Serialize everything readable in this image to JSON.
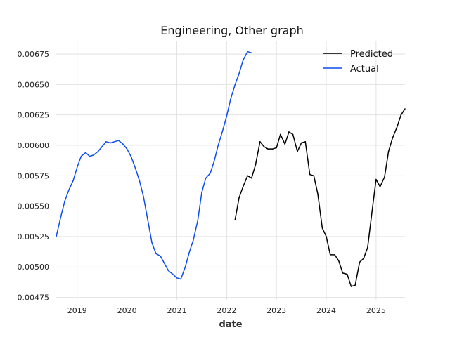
{
  "chart_data": {
    "type": "line",
    "title": "Engineering, Other graph",
    "xlabel": "date",
    "ylabel": "",
    "x_ticks": [
      "2019",
      "2020",
      "2021",
      "2022",
      "2023",
      "2024",
      "2025"
    ],
    "y_ticks": [
      "0.00475",
      "0.00500",
      "0.00525",
      "0.00550",
      "0.00575",
      "0.00600",
      "0.00625",
      "0.00650",
      "0.00675"
    ],
    "xlim": [
      2018.58,
      2025.58
    ],
    "ylim": [
      0.00473,
      0.00686
    ],
    "grid": true,
    "legend_position": "top-right",
    "series": [
      {
        "name": "Predicted",
        "color": "#000000",
        "points": [
          [
            2022.17,
            0.00539
          ],
          [
            2022.25,
            0.00557
          ],
          [
            2022.33,
            0.00566
          ],
          [
            2022.42,
            0.00575
          ],
          [
            2022.5,
            0.00573
          ],
          [
            2022.58,
            0.00584
          ],
          [
            2022.67,
            0.00603
          ],
          [
            2022.75,
            0.00599
          ],
          [
            2022.83,
            0.00597
          ],
          [
            2022.92,
            0.00597
          ],
          [
            2023.0,
            0.00598
          ],
          [
            2023.08,
            0.00609
          ],
          [
            2023.17,
            0.00601
          ],
          [
            2023.25,
            0.00611
          ],
          [
            2023.33,
            0.00609
          ],
          [
            2023.42,
            0.00595
          ],
          [
            2023.5,
            0.00602
          ],
          [
            2023.58,
            0.00603
          ],
          [
            2023.67,
            0.00576
          ],
          [
            2023.75,
            0.00575
          ],
          [
            2023.83,
            0.0056
          ],
          [
            2023.92,
            0.00532
          ],
          [
            2024.0,
            0.00525
          ],
          [
            2024.08,
            0.0051
          ],
          [
            2024.17,
            0.0051
          ],
          [
            2024.25,
            0.00505
          ],
          [
            2024.33,
            0.00495
          ],
          [
            2024.42,
            0.00494
          ],
          [
            2024.5,
            0.00484
          ],
          [
            2024.58,
            0.00485
          ],
          [
            2024.67,
            0.00504
          ],
          [
            2024.75,
            0.00507
          ],
          [
            2024.83,
            0.00516
          ],
          [
            2024.92,
            0.00546
          ],
          [
            2025.0,
            0.00572
          ],
          [
            2025.08,
            0.00566
          ],
          [
            2025.17,
            0.00574
          ],
          [
            2025.25,
            0.00595
          ],
          [
            2025.33,
            0.00606
          ],
          [
            2025.42,
            0.00615
          ],
          [
            2025.5,
            0.00625
          ],
          [
            2025.58,
            0.0063
          ]
        ]
      },
      {
        "name": "Actual",
        "color": "#0f4cf0",
        "points": [
          [
            2018.58,
            0.00525
          ],
          [
            2018.67,
            0.00541
          ],
          [
            2018.75,
            0.00554
          ],
          [
            2018.83,
            0.00563
          ],
          [
            2018.92,
            0.00571
          ],
          [
            2019.0,
            0.00582
          ],
          [
            2019.08,
            0.00591
          ],
          [
            2019.17,
            0.00594
          ],
          [
            2019.25,
            0.00591
          ],
          [
            2019.33,
            0.00592
          ],
          [
            2019.42,
            0.00595
          ],
          [
            2019.5,
            0.00599
          ],
          [
            2019.58,
            0.00603
          ],
          [
            2019.67,
            0.00602
          ],
          [
            2019.75,
            0.00603
          ],
          [
            2019.83,
            0.00604
          ],
          [
            2019.92,
            0.00601
          ],
          [
            2020.0,
            0.00597
          ],
          [
            2020.08,
            0.00591
          ],
          [
            2020.17,
            0.00581
          ],
          [
            2020.25,
            0.00571
          ],
          [
            2020.33,
            0.00558
          ],
          [
            2020.42,
            0.00538
          ],
          [
            2020.5,
            0.0052
          ],
          [
            2020.58,
            0.00511
          ],
          [
            2020.67,
            0.00509
          ],
          [
            2020.75,
            0.00503
          ],
          [
            2020.83,
            0.00497
          ],
          [
            2020.92,
            0.00494
          ],
          [
            2021.0,
            0.00491
          ],
          [
            2021.08,
            0.0049
          ],
          [
            2021.17,
            0.005
          ],
          [
            2021.25,
            0.00512
          ],
          [
            2021.33,
            0.00522
          ],
          [
            2021.42,
            0.00538
          ],
          [
            2021.5,
            0.00561
          ],
          [
            2021.58,
            0.00573
          ],
          [
            2021.67,
            0.00577
          ],
          [
            2021.75,
            0.00587
          ],
          [
            2021.83,
            0.006
          ],
          [
            2021.92,
            0.00612
          ],
          [
            2022.0,
            0.00624
          ],
          [
            2022.08,
            0.00638
          ],
          [
            2022.17,
            0.0065
          ],
          [
            2022.25,
            0.00659
          ],
          [
            2022.33,
            0.0067
          ],
          [
            2022.42,
            0.00677
          ],
          [
            2022.5,
            0.00676
          ]
        ]
      }
    ]
  }
}
